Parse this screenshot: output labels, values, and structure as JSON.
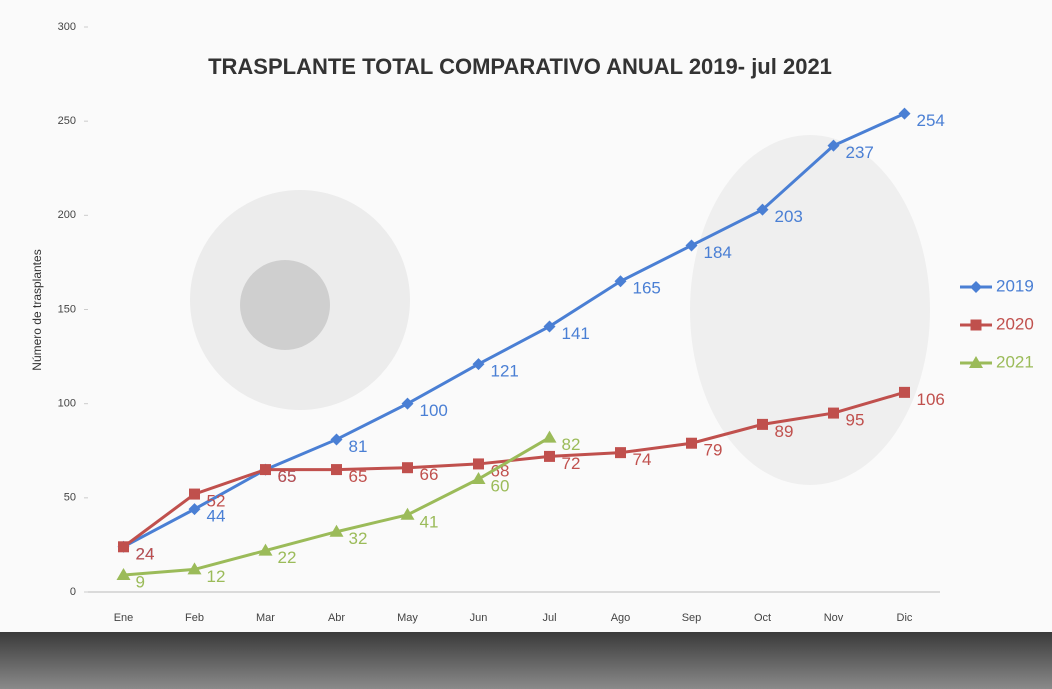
{
  "chart_data": {
    "type": "line",
    "title": "TRASPLANTE TOTAL COMPARATIVO ANUAL 2019- jul 2021",
    "y_label": "Número de trasplantes",
    "categories": [
      "Ene",
      "Feb",
      "Mar",
      "Abr",
      "May",
      "Jun",
      "Jul",
      "Ago",
      "Sep",
      "Oct",
      "Nov",
      "Dic"
    ],
    "series": [
      {
        "name": "2019",
        "color": "#4a7fd4",
        "marker": "diamond",
        "values": [
          24,
          44,
          65,
          81,
          100,
          121,
          141,
          165,
          184,
          203,
          237,
          254
        ]
      },
      {
        "name": "2020",
        "color": "#c0504d",
        "marker": "square",
        "values": [
          24,
          52,
          65,
          65,
          66,
          68,
          72,
          74,
          79,
          89,
          95,
          106
        ]
      },
      {
        "name": "2021",
        "color": "#9bbb59",
        "marker": "triangle",
        "values": [
          9,
          12,
          22,
          32,
          41,
          60,
          82,
          null,
          null,
          null,
          null,
          null
        ]
      }
    ],
    "ylim": [
      0,
      300
    ],
    "yticks": [
      0,
      50,
      100,
      150,
      200,
      250,
      300
    ],
    "grid": false,
    "legend": "right"
  }
}
